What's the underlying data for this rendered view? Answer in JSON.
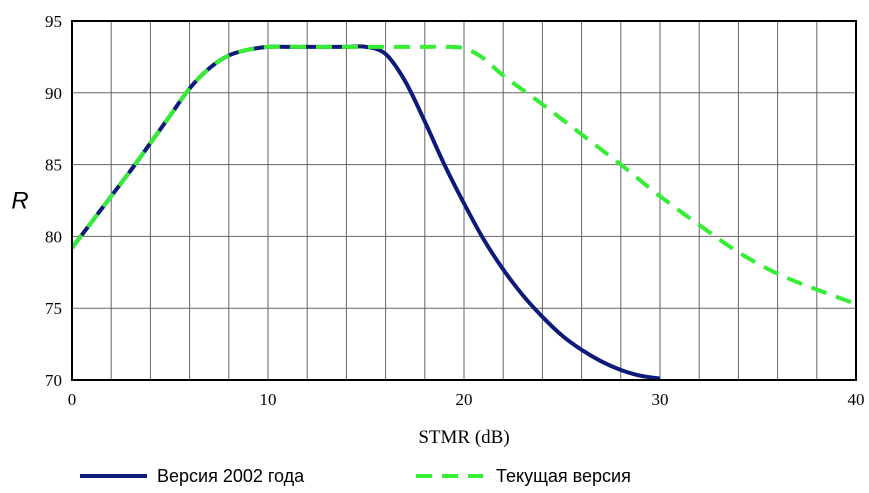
{
  "chart_data": {
    "type": "line",
    "xlabel": "STMR (dB)",
    "ylabel": "R",
    "xlim": [
      0,
      40
    ],
    "ylim": [
      70,
      95
    ],
    "xticks": [
      0,
      10,
      20,
      30,
      40
    ],
    "yticks": [
      70,
      75,
      80,
      85,
      90,
      95
    ],
    "grid": true,
    "legend_position": "bottom",
    "series": [
      {
        "name": "Версия 2002 года",
        "color": "#0d1a7a",
        "style": "solid",
        "x": [
          0,
          1,
          2,
          3,
          4,
          5,
          6,
          7,
          8,
          9,
          10,
          11,
          12,
          13,
          14,
          15,
          16,
          17,
          18,
          19,
          20,
          21,
          22,
          23,
          24,
          25,
          26,
          27,
          28,
          29,
          30
        ],
        "y": [
          79.2,
          81.0,
          82.8,
          84.6,
          86.5,
          88.4,
          90.3,
          91.7,
          92.6,
          93.0,
          93.2,
          93.2,
          93.2,
          93.2,
          93.2,
          93.2,
          92.7,
          90.8,
          88.0,
          85.0,
          82.3,
          79.8,
          77.7,
          75.9,
          74.4,
          73.1,
          72.1,
          71.3,
          70.7,
          70.3,
          70.1
        ]
      },
      {
        "name": "Текущая версия",
        "color": "#33ee33",
        "style": "dashed",
        "x": [
          0,
          1,
          2,
          3,
          4,
          5,
          6,
          7,
          8,
          9,
          10,
          12,
          14,
          16,
          18,
          19,
          20,
          21,
          22,
          24,
          26,
          28,
          30,
          32,
          34,
          36,
          38,
          40
        ],
        "y": [
          79.2,
          81.0,
          82.8,
          84.6,
          86.5,
          88.4,
          90.3,
          91.7,
          92.6,
          93.0,
          93.2,
          93.2,
          93.2,
          93.2,
          93.2,
          93.2,
          93.1,
          92.4,
          91.2,
          89.2,
          87.1,
          85.0,
          82.8,
          80.8,
          78.9,
          77.4,
          76.3,
          75.3
        ]
      }
    ]
  }
}
